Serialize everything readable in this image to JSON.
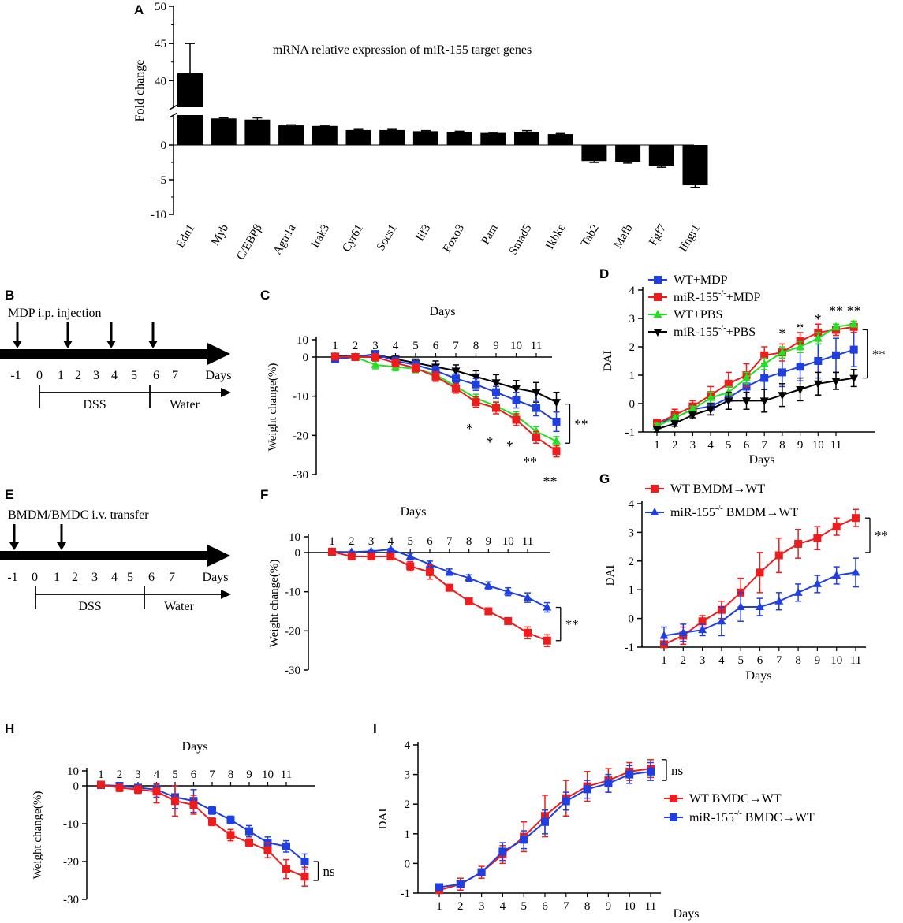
{
  "colors": {
    "red": "#ee1c1c",
    "blue": "#1f3fe0",
    "green": "#22e022",
    "black": "#000000"
  },
  "panel_letters": [
    "A",
    "B",
    "C",
    "D",
    "E",
    "F",
    "G",
    "H",
    "I"
  ],
  "chart_data": [
    {
      "id": "A",
      "type": "bar",
      "title": "mRNA relative expression of miR-155 target genes",
      "ylabel": "Fold change",
      "yticks": [
        "50",
        "45",
        "40",
        "0",
        "-5",
        "-10"
      ],
      "broken_axis": true,
      "categories": [
        "Edn1",
        "Myb",
        "C/EBPβ",
        "Agtr1a",
        "Irak3",
        "Cyr61",
        "Socs1",
        "Iif3",
        "Foxo3",
        "Pam",
        "Smad5",
        "Ikbkε",
        "Tab2",
        "Mafb",
        "Fgf7",
        "Ifngr1"
      ],
      "values": [
        41,
        4.6,
        4.4,
        3.4,
        3.3,
        2.6,
        2.6,
        2.4,
        2.3,
        2.1,
        2.3,
        1.9,
        -2.3,
        -2.4,
        -3.0,
        -5.8
      ],
      "errors": [
        4,
        0.1,
        0.3,
        0.1,
        0.1,
        0.1,
        0.1,
        0.1,
        0.1,
        0.1,
        0.2,
        0.1,
        0.2,
        0.2,
        0.2,
        0.3
      ]
    },
    {
      "id": "B",
      "type": "diagram",
      "caption": "MDP i.p. injection",
      "ticks": [
        "-1",
        "0",
        "1",
        "2",
        "3",
        "4",
        "5",
        "6",
        "7"
      ],
      "days_label": "Days",
      "dss_label": "DSS",
      "water_label": "Water"
    },
    {
      "id": "C",
      "type": "line",
      "xlabel": "Days",
      "ylabel": "Weight change(%)",
      "x": [
        1,
        2,
        3,
        4,
        5,
        6,
        7,
        8,
        9,
        10,
        11,
        12
      ],
      "xtick_labels": [
        "1",
        "2",
        "3",
        "4",
        "5",
        "6",
        "7",
        "8",
        "9",
        "10",
        "11"
      ],
      "yticks": [
        "10",
        "0",
        "-10",
        "-20",
        "-30"
      ],
      "ylim": [
        -30,
        10
      ],
      "series": [
        {
          "name": "WT+PBS",
          "color": "green",
          "marker": "tri-up",
          "values": [
            0.5,
            0,
            -2,
            -2.5,
            -3,
            -4.5,
            -7.5,
            -10.5,
            -12.5,
            -15,
            -19,
            -21.5
          ],
          "err": [
            0.8,
            0.8,
            1,
            1,
            1,
            1,
            1,
            1,
            1,
            1,
            1.2,
            1.2
          ]
        },
        {
          "name": "miR-155-/-+PBS",
          "color": "black",
          "marker": "tri-down",
          "values": [
            0.5,
            0.3,
            1.5,
            -0.5,
            -1.5,
            -2.5,
            -3.5,
            -5,
            -6.5,
            -8,
            -9,
            -11.5
          ],
          "err": [
            0.8,
            0.8,
            1,
            1,
            1,
            1.5,
            1.5,
            1.5,
            2,
            2,
            2.5,
            2.5
          ]
        },
        {
          "name": "WT+MDP",
          "color": "blue",
          "marker": "square",
          "values": [
            -0.5,
            0,
            1.8,
            -1,
            -2,
            -3.5,
            -5.5,
            -7,
            -9,
            -11,
            -13,
            -16.5
          ],
          "err": [
            0.8,
            0.8,
            1,
            1,
            1,
            1.2,
            1.2,
            1.5,
            1.5,
            2,
            2,
            2.5
          ]
        },
        {
          "name": "miR-155-/-+MDP",
          "color": "red",
          "marker": "square",
          "values": [
            0.3,
            0,
            0,
            -1.5,
            -2.8,
            -5,
            -8,
            -11.5,
            -13,
            -16,
            -20.5,
            -24
          ],
          "err": [
            0.8,
            0.8,
            1,
            1,
            1,
            1.2,
            1.2,
            1.3,
            1.5,
            1.5,
            1.5,
            1.5
          ]
        }
      ],
      "annotations": [
        {
          "x": 8,
          "y": -19.5,
          "text": "*"
        },
        {
          "x": 9,
          "y": -23,
          "text": "*"
        },
        {
          "x": 10,
          "y": -24,
          "text": "*"
        },
        {
          "x": 11,
          "y": -28,
          "text": "**"
        },
        {
          "x": 12,
          "y": -33,
          "text": "**"
        }
      ],
      "bracket_label": "**",
      "bracket_y": [
        -12,
        -22
      ]
    },
    {
      "id": "D",
      "type": "line",
      "xlabel": "Days",
      "ylabel": "DAI",
      "x": [
        1,
        2,
        3,
        4,
        5,
        6,
        7,
        8,
        9,
        10,
        11,
        12
      ],
      "xtick_labels": [
        "1",
        "2",
        "3",
        "4",
        "5",
        "6",
        "7",
        "8",
        "9",
        "10",
        "11"
      ],
      "yticks": [
        "4",
        "3",
        "2",
        "1",
        "0",
        "-1"
      ],
      "ylim": [
        -1,
        4
      ],
      "legend": [
        "WT+MDP",
        "miR-155-/-+MDP",
        "WT+PBS",
        "miR-155-/-+PBS"
      ],
      "series": [
        {
          "name": "WT+MDP",
          "color": "blue",
          "marker": "square",
          "values": [
            -0.7,
            -0.5,
            -0.2,
            -0.1,
            0.2,
            0.6,
            0.9,
            1.1,
            1.3,
            1.5,
            1.7,
            1.9
          ],
          "err": [
            0.15,
            0.2,
            0.2,
            0.3,
            0.4,
            0.4,
            0.4,
            0.5,
            0.5,
            0.6,
            0.6,
            0.6
          ]
        },
        {
          "name": "miR-155-/-+MDP",
          "color": "red",
          "marker": "square",
          "values": [
            -0.7,
            -0.4,
            -0.1,
            0.3,
            0.7,
            1.0,
            1.7,
            1.8,
            2.2,
            2.5,
            2.6,
            2.7
          ],
          "err": [
            0.15,
            0.2,
            0.2,
            0.3,
            0.4,
            0.4,
            0.3,
            0.3,
            0.3,
            0.3,
            0.2,
            0.2
          ]
        },
        {
          "name": "WT+PBS",
          "color": "green",
          "marker": "tri-up",
          "values": [
            -0.8,
            -0.5,
            -0.2,
            0.2,
            0.4,
            0.9,
            1.4,
            1.8,
            2.0,
            2.3,
            2.7,
            2.8
          ],
          "err": [
            0.1,
            0.1,
            0.1,
            0.2,
            0.2,
            0.2,
            0.2,
            0.2,
            0.2,
            0.2,
            0.1,
            0.1
          ]
        },
        {
          "name": "miR-155-/-+PBS",
          "color": "black",
          "marker": "tri-down",
          "values": [
            -0.9,
            -0.7,
            -0.4,
            -0.2,
            0.1,
            0.1,
            0.1,
            0.3,
            0.5,
            0.7,
            0.8,
            0.9
          ],
          "err": [
            0.1,
            0.1,
            0.1,
            0.2,
            0.3,
            0.3,
            0.4,
            0.4,
            0.4,
            0.4,
            0.3,
            0.3
          ]
        }
      ],
      "annotations": [
        {
          "x": 8,
          "y": 2.3,
          "text": "*"
        },
        {
          "x": 9,
          "y": 2.5,
          "text": "*"
        },
        {
          "x": 10,
          "y": 2.8,
          "text": "*"
        },
        {
          "x": 11,
          "y": 3.1,
          "text": "**"
        },
        {
          "x": 12,
          "y": 3.1,
          "text": "**"
        }
      ],
      "bracket_label": "**",
      "bracket_y": [
        2.6,
        0.9
      ]
    },
    {
      "id": "E",
      "type": "diagram",
      "caption": "BMDM/BMDC i.v. transfer",
      "ticks": [
        "-1",
        "0",
        "1",
        "2",
        "3",
        "4",
        "5",
        "6",
        "7"
      ],
      "days_label": "Days",
      "dss_label": "DSS",
      "water_label": "Water"
    },
    {
      "id": "F",
      "type": "line",
      "xlabel": "Days",
      "ylabel": "Weight change(%)",
      "x": [
        1,
        2,
        3,
        4,
        5,
        6,
        7,
        8,
        9,
        10,
        11,
        12
      ],
      "xtick_labels": [
        "1",
        "2",
        "3",
        "4",
        "5",
        "6",
        "7",
        "8",
        "9",
        "10",
        "11"
      ],
      "yticks": [
        "10",
        "0",
        "-10",
        "-20",
        "-30"
      ],
      "ylim": [
        -30,
        10
      ],
      "series": [
        {
          "name": "miR-155-/- BMDM→WT",
          "color": "blue",
          "marker": "tri-up",
          "values": [
            0.5,
            0.3,
            0.8,
            2,
            -1,
            -3,
            -5,
            -6.5,
            -8.5,
            -10,
            -11.5,
            -14
          ],
          "err": [
            0.5,
            0.5,
            0.5,
            0.5,
            0.8,
            0.8,
            0.8,
            0.8,
            1,
            1,
            1.2,
            1.2
          ]
        },
        {
          "name": "WT BMDM→WT",
          "color": "red",
          "marker": "square",
          "values": [
            0.5,
            -1,
            -1,
            -1,
            -3.5,
            -5,
            -9,
            -12.5,
            -15,
            -17.5,
            -20.5,
            -22.5
          ],
          "err": [
            0.8,
            0.8,
            0.8,
            0.8,
            1.2,
            1.8,
            0.8,
            0.8,
            0.8,
            0.8,
            1.5,
            1.5
          ]
        }
      ],
      "bracket_label": "**",
      "bracket_y": [
        -14,
        -22.5
      ]
    },
    {
      "id": "G",
      "type": "line",
      "xlabel": "Days",
      "ylabel": "DAI",
      "x": [
        1,
        2,
        3,
        4,
        5,
        6,
        7,
        8,
        9,
        10,
        11
      ],
      "xtick_labels": [
        "1",
        "2",
        "3",
        "4",
        "5",
        "6",
        "7",
        "8",
        "9",
        "10",
        "11"
      ],
      "yticks": [
        "4",
        "3",
        "2",
        "1",
        "0",
        "-1"
      ],
      "ylim": [
        -1,
        4
      ],
      "legend": [
        "WT BMDM→WT",
        "miR-155-/- BMDM→WT"
      ],
      "series": [
        {
          "name": "WT BMDM→WT",
          "color": "red",
          "marker": "square",
          "values": [
            -0.9,
            -0.6,
            -0.1,
            0.3,
            0.9,
            1.6,
            2.2,
            2.6,
            2.8,
            3.2,
            3.5
          ],
          "err": [
            0.1,
            0.3,
            0.2,
            0.3,
            0.5,
            0.7,
            0.6,
            0.5,
            0.4,
            0.3,
            0.3
          ]
        },
        {
          "name": "miR-155-/- BMDM→WT",
          "color": "blue",
          "marker": "tri-up",
          "values": [
            -0.6,
            -0.5,
            -0.4,
            -0.1,
            0.4,
            0.4,
            0.6,
            0.9,
            1.2,
            1.5,
            1.6
          ],
          "err": [
            0.3,
            0.3,
            0.2,
            0.5,
            0.5,
            0.3,
            0.3,
            0.3,
            0.3,
            0.3,
            0.5
          ]
        }
      ],
      "bracket_label": "**",
      "bracket_y": [
        3.5,
        2.3
      ]
    },
    {
      "id": "H",
      "type": "line",
      "xlabel": "Days",
      "ylabel": "Weight change(%)",
      "x": [
        1,
        2,
        3,
        4,
        5,
        6,
        7,
        8,
        9,
        10,
        11,
        12
      ],
      "xtick_labels": [
        "1",
        "2",
        "3",
        "4",
        "5",
        "6",
        "7",
        "8",
        "9",
        "10",
        "11"
      ],
      "yticks": [
        "10",
        "0",
        "-10",
        "-20",
        "-30"
      ],
      "ylim": [
        -30,
        10
      ],
      "series": [
        {
          "name": "miR-155-/- BMDC→WT",
          "color": "blue",
          "marker": "square",
          "values": [
            0.5,
            0,
            -0.5,
            -1,
            -3,
            -4,
            -6.5,
            -9,
            -12,
            -15,
            -16,
            -20
          ],
          "err": [
            1,
            1,
            1,
            2,
            3,
            3,
            1,
            1,
            1.5,
            1.5,
            1.5,
            2
          ]
        },
        {
          "name": "WT BMDC→WT",
          "color": "red",
          "marker": "square",
          "values": [
            0.8,
            -0.5,
            -1,
            -1.5,
            -4,
            -5,
            -9.5,
            -13,
            -15,
            -17,
            -22,
            -24
          ],
          "err": [
            1,
            1,
            1,
            3,
            4,
            2.5,
            1,
            1.5,
            1,
            2,
            2.5,
            2.5
          ]
        }
      ],
      "bracket_label": "ns",
      "bracket_y": [
        -20,
        -25
      ]
    },
    {
      "id": "I",
      "type": "line",
      "xlabel": "Days",
      "ylabel": "DAI",
      "x": [
        1,
        2,
        3,
        4,
        5,
        6,
        7,
        8,
        9,
        10,
        11
      ],
      "xtick_labels": [
        "1",
        "2",
        "3",
        "4",
        "5",
        "6",
        "7",
        "8",
        "9",
        "10",
        "11"
      ],
      "yticks": [
        "4",
        "3",
        "2",
        "1",
        "0",
        "-1"
      ],
      "ylim": [
        -1,
        4
      ],
      "legend": [
        "WT BMDC→WT",
        "miR-155-/- BMDC→WT"
      ],
      "series": [
        {
          "name": "WT BMDC→WT",
          "color": "red",
          "marker": "square",
          "values": [
            -0.9,
            -0.7,
            -0.3,
            0.3,
            0.9,
            1.6,
            2.2,
            2.6,
            2.8,
            3.1,
            3.2
          ],
          "err": [
            0.1,
            0.2,
            0.2,
            0.3,
            0.5,
            0.7,
            0.6,
            0.5,
            0.4,
            0.3,
            0.3
          ]
        },
        {
          "name": "miR-155-/- BMDC→WT",
          "color": "blue",
          "marker": "square",
          "values": [
            -0.8,
            -0.7,
            -0.3,
            0.4,
            0.8,
            1.4,
            2.1,
            2.5,
            2.7,
            3.0,
            3.1
          ],
          "err": [
            0.1,
            0.1,
            0.1,
            0.3,
            0.3,
            0.4,
            0.3,
            0.3,
            0.3,
            0.3,
            0.3
          ]
        }
      ],
      "bracket_label": "ns",
      "bracket_y": [
        3.5,
        2.8
      ]
    }
  ]
}
